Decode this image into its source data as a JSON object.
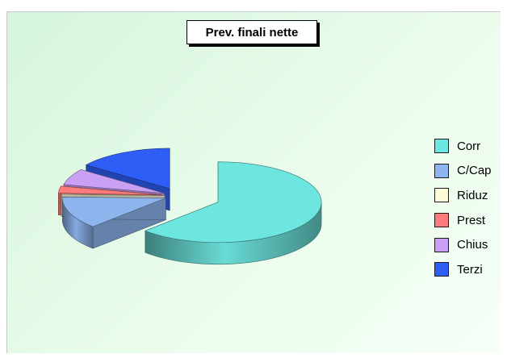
{
  "chart_data": {
    "type": "pie",
    "title": "Prev. finali nette",
    "legend_position": "right",
    "style": "3d-exploded",
    "categories": [
      "Corr",
      "C/Cap",
      "Riduz",
      "Prest",
      "Chius",
      "Terzi"
    ],
    "values": [
      62.5,
      13.0,
      0.3,
      2.8,
      6.5,
      15.0
    ],
    "colors": [
      "#6ee6e0",
      "#8db4ec",
      "#fffbd8",
      "#ff7a7a",
      "#caa0f5",
      "#2e5ef5"
    ]
  }
}
